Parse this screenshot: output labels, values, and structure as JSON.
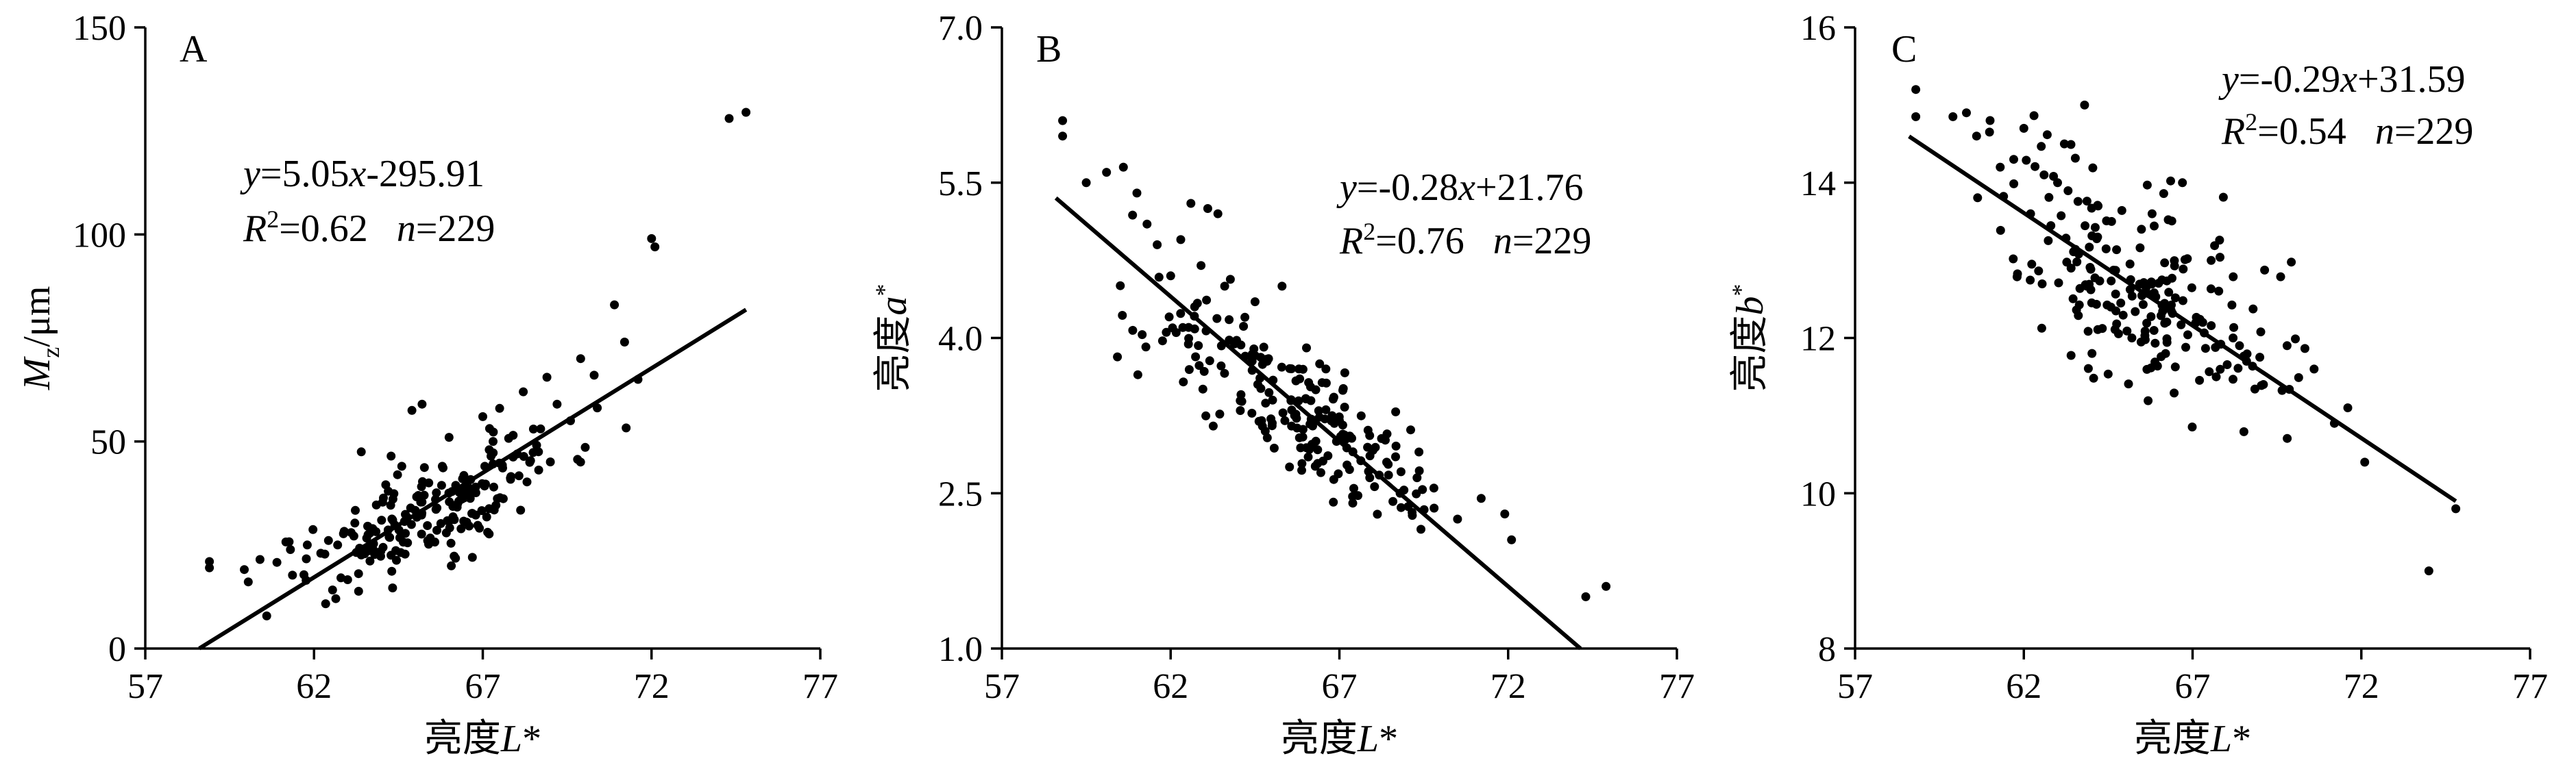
{
  "chart_data": [
    {
      "type": "scatter",
      "panel_label": "A",
      "xlabel": {
        "prefix": "亮度",
        "italic": "L",
        "suffix": "*"
      },
      "ylabel": {
        "italic": "M",
        "sub": "z",
        "suffix": "/μm"
      },
      "xlim": [
        57,
        77
      ],
      "ylim": [
        0,
        150
      ],
      "xticks": [
        57,
        62,
        67,
        72,
        77
      ],
      "yticks": [
        0,
        50,
        100,
        150
      ],
      "grid": false,
      "annotation": {
        "equation": {
          "y": "y",
          "eq": "=5.05",
          "x": "x",
          "rest": "-295.91"
        },
        "r2": {
          "R": "R",
          "sup": "2",
          "value": "=0.62"
        },
        "n": {
          "n": "n",
          "value": "=229"
        }
      },
      "fit": {
        "slope": 5.05,
        "intercept": -295.91,
        "x_range": [
          58.6,
          74.8
        ]
      },
      "points_seed": {
        "generator": "normal-cloud",
        "count": 229,
        "center": [
          65.5,
          33
        ],
        "x_sd": 2.2,
        "resid_sd": 6
      },
      "points": [
        [
          58.9,
          19.5
        ],
        [
          58.9,
          21.0
        ],
        [
          60.4,
          21.5
        ],
        [
          60.9,
          20.8
        ],
        [
          61.3,
          23.9
        ],
        [
          61.8,
          25.0
        ],
        [
          62.2,
          23.0
        ],
        [
          62.7,
          25.0
        ],
        [
          63.1,
          28.0
        ],
        [
          63.4,
          47.5
        ],
        [
          63.6,
          27.5
        ],
        [
          64.0,
          31.0
        ],
        [
          64.2,
          38.0
        ],
        [
          64.6,
          44.0
        ],
        [
          64.9,
          57.5
        ],
        [
          65.2,
          59.0
        ],
        [
          65.4,
          40.0
        ],
        [
          65.6,
          36.0
        ],
        [
          65.8,
          44.0
        ],
        [
          66.0,
          51.0
        ],
        [
          66.4,
          41.0
        ],
        [
          66.7,
          38.0
        ],
        [
          67.0,
          56.0
        ],
        [
          67.5,
          58.0
        ],
        [
          67.9,
          51.5
        ],
        [
          68.2,
          62.0
        ],
        [
          68.5,
          53.0
        ],
        [
          68.9,
          65.5
        ],
        [
          69.2,
          59.0
        ],
        [
          69.6,
          55.0
        ],
        [
          69.9,
          70.0
        ],
        [
          70.3,
          66.0
        ],
        [
          70.9,
          83.0
        ],
        [
          71.2,
          74.0
        ],
        [
          71.6,
          65.0
        ],
        [
          72.0,
          99.0
        ],
        [
          72.1,
          97.0
        ],
        [
          74.3,
          128.0
        ],
        [
          74.8,
          129.5
        ]
      ]
    },
    {
      "type": "scatter",
      "panel_label": "B",
      "xlabel": {
        "prefix": "亮度",
        "italic": "L",
        "suffix": "*"
      },
      "ylabel": {
        "prefix": "亮度",
        "italic": "a",
        "suffix": "*"
      },
      "xlim": [
        57,
        77
      ],
      "ylim": [
        1.0,
        7.0
      ],
      "xticks": [
        57,
        62,
        67,
        72,
        77
      ],
      "yticks": [
        1.0,
        2.5,
        4.0,
        5.5,
        7.0
      ],
      "ytick_labels": [
        "1.0",
        "2.5",
        "4.0",
        "5.5",
        "7.0"
      ],
      "grid": false,
      "annotation": {
        "equation": {
          "y": "y",
          "eq": "=-0.28",
          "x": "x",
          "rest": "+21.76"
        },
        "r2": {
          "R": "R",
          "sup": "2",
          "value": "=0.76"
        },
        "n": {
          "n": "n",
          "value": "=229"
        }
      },
      "fit": {
        "slope": -0.28,
        "intercept": 21.76,
        "x_range": [
          58.6,
          74.3
        ]
      },
      "points_seed": {
        "generator": "normal-cloud",
        "count": 229,
        "center": [
          65.5,
          3.35
        ],
        "x_sd": 2.0,
        "resid_sd": 0.3
      },
      "points": [
        [
          58.8,
          5.95
        ],
        [
          58.8,
          6.1
        ],
        [
          59.5,
          5.5
        ],
        [
          60.1,
          5.6
        ],
        [
          60.6,
          5.65
        ],
        [
          61.0,
          5.4
        ],
        [
          61.3,
          5.1
        ],
        [
          61.6,
          4.9
        ],
        [
          62.0,
          4.6
        ],
        [
          62.3,
          4.95
        ],
        [
          62.6,
          5.3
        ],
        [
          62.9,
          4.7
        ],
        [
          63.1,
          5.25
        ],
        [
          63.4,
          5.2
        ],
        [
          63.6,
          4.5
        ],
        [
          64.2,
          4.2
        ],
        [
          64.5,
          4.35
        ],
        [
          64.9,
          3.8
        ],
        [
          65.3,
          4.5
        ],
        [
          65.8,
          3.7
        ],
        [
          66.3,
          3.5
        ],
        [
          66.6,
          3.7
        ],
        [
          67.0,
          3.2
        ],
        [
          67.4,
          2.9
        ],
        [
          67.9,
          2.65
        ],
        [
          68.4,
          2.8
        ],
        [
          68.8,
          2.5
        ],
        [
          69.3,
          2.65
        ],
        [
          69.8,
          2.55
        ],
        [
          70.5,
          2.25
        ],
        [
          71.2,
          2.45
        ],
        [
          71.9,
          2.3
        ],
        [
          72.1,
          2.05
        ],
        [
          74.3,
          1.5
        ],
        [
          74.9,
          1.6
        ]
      ]
    },
    {
      "type": "scatter",
      "panel_label": "C",
      "xlabel": {
        "prefix": "亮度",
        "italic": "L",
        "suffix": "*"
      },
      "ylabel": {
        "prefix": "亮度",
        "italic": "b",
        "suffix": "*"
      },
      "xlim": [
        57,
        77
      ],
      "ylim": [
        8,
        16
      ],
      "xticks": [
        57,
        62,
        67,
        72,
        77
      ],
      "yticks": [
        8,
        10,
        12,
        14,
        16
      ],
      "grid": false,
      "annotation": {
        "equation": {
          "y": "y",
          "eq": "=-0.29",
          "x": "x",
          "rest": "+31.59"
        },
        "r2": {
          "R": "R",
          "sup": "2",
          "value": "=0.54"
        },
        "n": {
          "n": "n",
          "value": "=229"
        }
      },
      "fit": {
        "slope": -0.29,
        "intercept": 31.59,
        "x_range": [
          58.6,
          74.8
        ]
      },
      "points_seed": {
        "generator": "normal-cloud",
        "count": 229,
        "center": [
          65.5,
          12.55
        ],
        "x_sd": 2.0,
        "resid_sd": 0.6
      },
      "points": [
        [
          58.8,
          15.2
        ],
        [
          58.8,
          14.85
        ],
        [
          59.9,
          14.85
        ],
        [
          60.3,
          14.9
        ],
        [
          60.6,
          14.6
        ],
        [
          61.0,
          14.8
        ],
        [
          61.3,
          14.2
        ],
        [
          61.7,
          14.3
        ],
        [
          62.0,
          14.7
        ],
        [
          62.2,
          13.6
        ],
        [
          62.6,
          14.1
        ],
        [
          63.0,
          14.0
        ],
        [
          63.2,
          14.5
        ],
        [
          63.4,
          12.9
        ],
        [
          63.8,
          15.0
        ],
        [
          64.2,
          13.7
        ],
        [
          64.6,
          13.5
        ],
        [
          65.2,
          12.0
        ],
        [
          65.8,
          13.6
        ],
        [
          66.2,
          11.8
        ],
        [
          66.7,
          14.0
        ],
        [
          67.3,
          12.2
        ],
        [
          67.7,
          11.5
        ],
        [
          68.2,
          12.0
        ],
        [
          68.6,
          11.7
        ],
        [
          69.1,
          11.4
        ],
        [
          69.8,
          11.9
        ],
        [
          70.6,
          11.6
        ],
        [
          71.2,
          10.9
        ],
        [
          71.6,
          11.1
        ],
        [
          72.1,
          10.4
        ],
        [
          74.0,
          9.0
        ],
        [
          74.8,
          9.8
        ]
      ]
    }
  ]
}
